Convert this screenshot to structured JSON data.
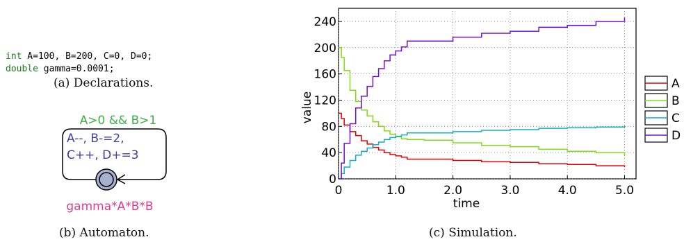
{
  "declarations": {
    "line1_keyword": "int",
    "line1_rest": " A=100, B=200, C=0, D=0;",
    "line2_keyword": "double",
    "line2_rest": " gamma=0.0001;",
    "caption": "(a) Declarations."
  },
  "automaton": {
    "guard": "A>0 && B>1",
    "update_line1": "A--, B-=2,",
    "update_line2": "C++, D+=3",
    "rate": "gamma*A*B*B",
    "caption": "(b) Automaton.",
    "colors": {
      "guard": "#3cb043",
      "update": "#4040a0",
      "rate": "#e03c8c",
      "location_fill": "#a8b0d0"
    }
  },
  "simulation": {
    "caption": "(c) Simulation."
  },
  "chart_data": {
    "type": "line",
    "xlabel": "time",
    "ylabel": "value",
    "xlim": [
      0,
      5.2
    ],
    "ylim": [
      0,
      260
    ],
    "xticks": [
      "0",
      "1.0",
      "2.0",
      "3.0",
      "4.0",
      "5.0"
    ],
    "yticks": [
      "0",
      "40",
      "80",
      "120",
      "160",
      "200",
      "240"
    ],
    "legend_position": "right",
    "series": [
      {
        "name": "A",
        "color": "#e00000",
        "x": [
          0,
          0.05,
          0.1,
          0.2,
          0.3,
          0.4,
          0.5,
          0.6,
          0.7,
          0.8,
          0.9,
          1.0,
          1.1,
          1.2,
          1.5,
          2.0,
          2.5,
          3.0,
          3.5,
          4.0,
          4.5,
          5.0
        ],
        "y": [
          100,
          92,
          82,
          72,
          66,
          58,
          53,
          48,
          44,
          40,
          37,
          35,
          33,
          30,
          30,
          28,
          26,
          25,
          23,
          22,
          20,
          18
        ]
      },
      {
        "name": "B",
        "color": "#80dd10",
        "x": [
          0,
          0.05,
          0.1,
          0.2,
          0.3,
          0.4,
          0.5,
          0.6,
          0.7,
          0.8,
          0.9,
          1.0,
          1.1,
          1.2,
          1.5,
          2.0,
          2.5,
          3.0,
          3.5,
          4.0,
          4.5,
          5.0
        ],
        "y": [
          200,
          185,
          165,
          135,
          118,
          105,
          96,
          87,
          80,
          73,
          68,
          64,
          61,
          60,
          59,
          55,
          51,
          49,
          45,
          42,
          40,
          36
        ]
      },
      {
        "name": "C",
        "color": "#10b0c0",
        "x": [
          0,
          0.05,
          0.1,
          0.2,
          0.3,
          0.4,
          0.5,
          0.6,
          0.7,
          0.8,
          0.9,
          1.0,
          1.1,
          1.2,
          1.5,
          2.0,
          2.5,
          3.0,
          3.5,
          4.0,
          4.5,
          5.0
        ],
        "y": [
          0,
          8,
          18,
          28,
          36,
          42,
          47,
          52,
          56,
          60,
          63,
          65,
          67,
          70,
          70,
          72,
          74,
          75,
          77,
          78,
          79,
          81
        ]
      },
      {
        "name": "D",
        "color": "#7010d0",
        "x": [
          0,
          0.05,
          0.1,
          0.2,
          0.3,
          0.4,
          0.5,
          0.6,
          0.7,
          0.8,
          0.9,
          1.0,
          1.1,
          1.2,
          1.5,
          2.0,
          2.5,
          3.0,
          3.5,
          4.0,
          4.5,
          5.0
        ],
        "y": [
          0,
          24,
          54,
          84,
          108,
          126,
          141,
          156,
          168,
          180,
          189,
          195,
          201,
          210,
          210,
          216,
          222,
          225,
          231,
          234,
          240,
          246
        ]
      }
    ]
  }
}
